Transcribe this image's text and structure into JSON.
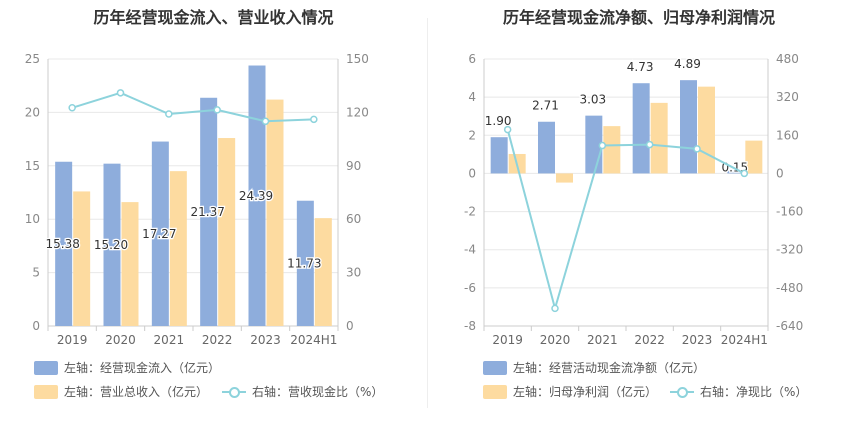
{
  "chart_data": [
    {
      "type": "bar+line",
      "title": "历年经营现金流入、营业收入情况",
      "categories": [
        "2019",
        "2020",
        "2021",
        "2022",
        "2023",
        "2024H1"
      ],
      "left_axis": {
        "ylim": [
          0,
          25
        ],
        "ticks": [
          "0",
          "5",
          "10",
          "15",
          "20",
          "25"
        ]
      },
      "right_axis": {
        "ylim": [
          0,
          150
        ],
        "ticks": [
          "0",
          "30",
          "60",
          "90",
          "120",
          "150"
        ]
      },
      "series": [
        {
          "name": "左轴：经营现金流入（亿元）",
          "axis": "left",
          "kind": "bar",
          "color": "#8eaddc",
          "values": [
            15.38,
            15.2,
            17.27,
            21.37,
            24.39,
            11.73
          ],
          "labels": [
            "15.38",
            "15.20",
            "17.27",
            "21.37",
            "24.39",
            "11.73"
          ]
        },
        {
          "name": "左轴：营业总收入（亿元）",
          "axis": "left",
          "kind": "bar",
          "color": "#fddba0",
          "values": [
            12.6,
            11.6,
            14.5,
            17.6,
            21.2,
            10.1
          ]
        },
        {
          "name": "右轴：营收现金比（%）",
          "axis": "right",
          "kind": "line",
          "color": "#8dd3dc",
          "values": [
            122.6,
            131.0,
            119.1,
            121.4,
            115.0,
            116.1
          ]
        }
      ]
    },
    {
      "type": "bar+line",
      "title": "历年经营现金流净额、归母净利润情况",
      "categories": [
        "2019",
        "2020",
        "2021",
        "2022",
        "2023",
        "2024H1"
      ],
      "left_axis": {
        "ylim": [
          -8,
          6
        ],
        "ticks": [
          "-8",
          "-6",
          "-4",
          "-2",
          "0",
          "2",
          "4",
          "6"
        ]
      },
      "right_axis": {
        "ylim": [
          -640,
          480
        ],
        "ticks": [
          "-640",
          "-480",
          "-320",
          "-160",
          "0",
          "160",
          "320",
          "480"
        ]
      },
      "series": [
        {
          "name": "左轴：经营活动现金流净额（亿元）",
          "axis": "left",
          "kind": "bar",
          "color": "#8eaddc",
          "values": [
            1.9,
            2.71,
            3.03,
            4.73,
            4.89,
            0.15
          ],
          "labels": [
            "1.90",
            "2.71",
            "3.03",
            "4.73",
            "4.89",
            "0.15"
          ]
        },
        {
          "name": "左轴：归母净利润（亿元）",
          "axis": "left",
          "kind": "bar",
          "color": "#fddba0",
          "values": [
            1.02,
            -0.48,
            2.48,
            3.7,
            4.55,
            1.72
          ]
        },
        {
          "name": "右轴：净现比（%）",
          "axis": "right",
          "kind": "line",
          "color": "#8dd3dc",
          "values": [
            184,
            -566,
            117,
            121,
            103,
            0
          ]
        }
      ]
    }
  ]
}
